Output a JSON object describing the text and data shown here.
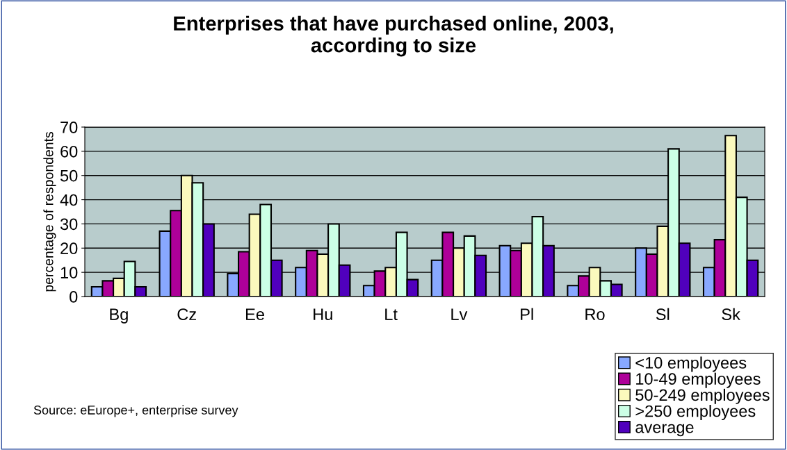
{
  "chart_data": {
    "type": "bar",
    "title": "Enterprises that have purchased online, 2003,\naccording to size",
    "ylabel": "percentage of respondents",
    "categories": [
      "Bg",
      "Cz",
      "Ee",
      "Hu",
      "Lt",
      "Lv",
      "Pl",
      "Ro",
      "Sl",
      "Sk"
    ],
    "series": [
      {
        "name": "<10 employees",
        "color": "#88a8ff",
        "values": [
          4,
          27,
          9.5,
          12,
          4.5,
          15,
          21,
          4.5,
          20,
          12
        ]
      },
      {
        "name": "10-49 employees",
        "color": "#ae0099",
        "values": [
          6.5,
          35.5,
          18.5,
          19,
          10.5,
          26.5,
          19,
          8.5,
          17.5,
          23.5
        ]
      },
      {
        "name": "50-249 employees",
        "color": "#fbf9bd",
        "values": [
          7.5,
          50,
          34,
          17.5,
          12,
          20,
          22,
          12,
          29,
          66.5
        ]
      },
      {
        "name": ">250 employees",
        "color": "#ccffe6",
        "values": [
          14.5,
          47,
          38,
          30,
          26.5,
          25,
          33,
          6.5,
          61,
          41
        ]
      },
      {
        "name": "average",
        "color": "#5000bd",
        "values": [
          4,
          30,
          15,
          13,
          7,
          17,
          21,
          5,
          22,
          15
        ]
      }
    ],
    "ylim": [
      0,
      70
    ],
    "yticks": [
      0,
      10,
      20,
      30,
      40,
      50,
      60,
      70
    ],
    "grid": "y",
    "legend": "bottom right",
    "annotations": [
      "Source: eEurope+, enterprise survey"
    ]
  }
}
